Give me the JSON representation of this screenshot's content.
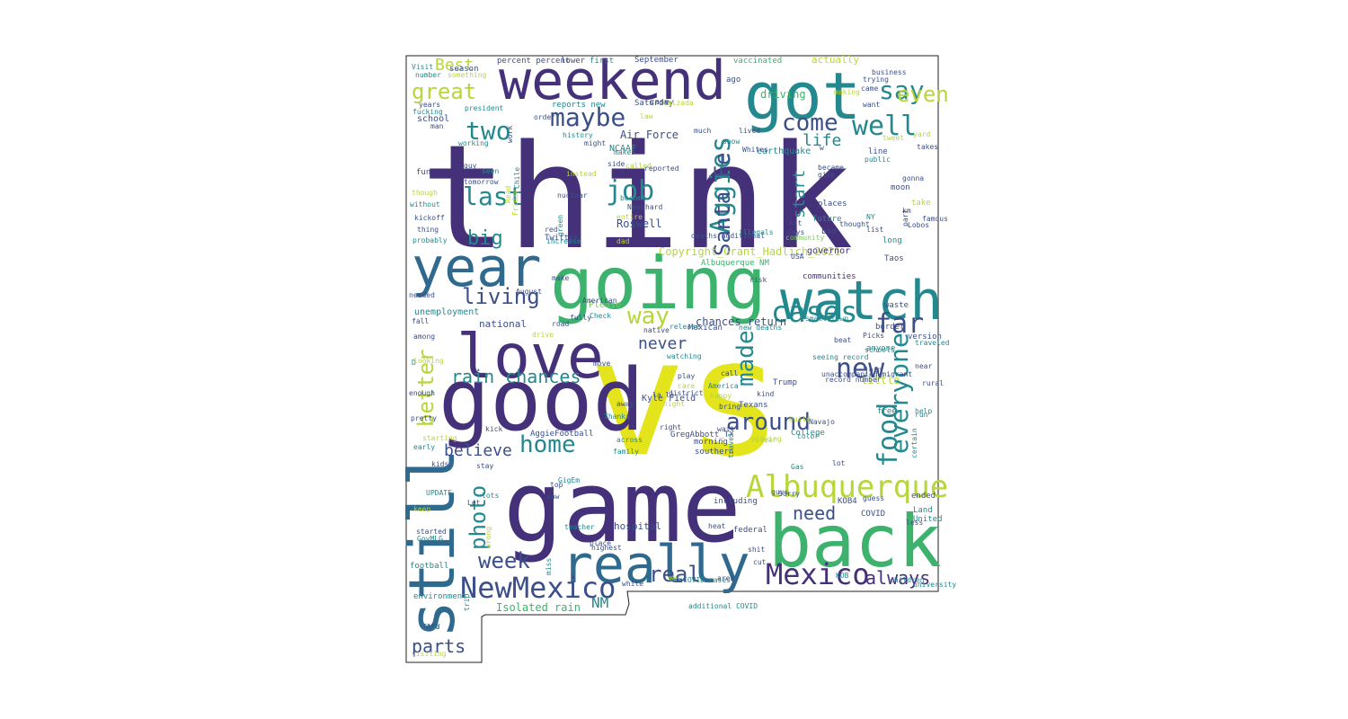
{
  "wordcloud": {
    "colors": {
      "dark_purple": "#45307a",
      "indigo": "#3b4f8a",
      "blue": "#2f6a8e",
      "teal": "#23898e",
      "green": "#3cb26d",
      "light_green": "#7dc95c",
      "lime": "#b7d63b",
      "yellow": "#e3e41b"
    },
    "words": [
      {
        "text": "think",
        "color": "dark_purple"
      },
      {
        "text": "vs",
        "color": "yellow"
      },
      {
        "text": "game",
        "color": "dark_purple"
      },
      {
        "text": "good",
        "color": "dark_purple"
      },
      {
        "text": "going",
        "color": "green"
      },
      {
        "text": "back",
        "color": "green"
      },
      {
        "text": "weekend",
        "color": "dark_purple"
      },
      {
        "text": "got",
        "color": "teal"
      },
      {
        "text": "watch",
        "color": "teal"
      },
      {
        "text": "love",
        "color": "dark_purple"
      },
      {
        "text": "really",
        "color": "blue"
      },
      {
        "text": "year",
        "color": "blue"
      },
      {
        "text": "still",
        "color": "blue"
      },
      {
        "text": "Albuquerque",
        "color": "lime"
      },
      {
        "text": "NewMexico",
        "color": "indigo"
      },
      {
        "text": "Mexico",
        "color": "dark_purple"
      },
      {
        "text": "cases",
        "color": "teal"
      },
      {
        "text": "say",
        "color": "teal"
      },
      {
        "text": "even",
        "color": "lime"
      },
      {
        "text": "great",
        "color": "lime"
      },
      {
        "text": "two",
        "color": "teal"
      },
      {
        "text": "maybe",
        "color": "indigo"
      },
      {
        "text": "come",
        "color": "indigo"
      },
      {
        "text": "well",
        "color": "teal"
      },
      {
        "text": "last",
        "color": "teal"
      },
      {
        "text": "big",
        "color": "teal"
      },
      {
        "text": "job",
        "color": "teal"
      },
      {
        "text": "Aggies",
        "color": "teal"
      },
      {
        "text": "Santa Fe",
        "color": "indigo"
      },
      {
        "text": "life",
        "color": "teal"
      },
      {
        "text": "start",
        "color": "teal"
      },
      {
        "text": "living",
        "color": "indigo"
      },
      {
        "text": "way",
        "color": "lime"
      },
      {
        "text": "far",
        "color": "indigo"
      },
      {
        "text": "new",
        "color": "indigo"
      },
      {
        "text": "everyone",
        "color": "teal"
      },
      {
        "text": "food",
        "color": "teal"
      },
      {
        "text": "made",
        "color": "teal"
      },
      {
        "text": "around",
        "color": "indigo"
      },
      {
        "text": "better",
        "color": "lime"
      },
      {
        "text": "rain chances",
        "color": "teal"
      },
      {
        "text": "home",
        "color": "teal"
      },
      {
        "text": "believe",
        "color": "indigo"
      },
      {
        "text": "photo",
        "color": "teal"
      },
      {
        "text": "week",
        "color": "indigo"
      },
      {
        "text": "parts",
        "color": "indigo"
      },
      {
        "text": "real",
        "color": "indigo"
      },
      {
        "text": "need",
        "color": "indigo"
      },
      {
        "text": "always",
        "color": "dark_purple"
      },
      {
        "text": "never",
        "color": "indigo"
      },
      {
        "text": "Best",
        "color": "lime"
      },
      {
        "text": "NM",
        "color": "teal"
      },
      {
        "text": "Copyright_Grant_Hadlich_2021",
        "color": "lime"
      },
      {
        "text": "Roswell",
        "color": "indigo"
      },
      {
        "text": "Air Force",
        "color": "indigo"
      },
      {
        "text": "NCAAF",
        "color": "teal"
      },
      {
        "text": "Isolated rain",
        "color": "green"
      },
      {
        "text": "chances return",
        "color": "indigo"
      },
      {
        "text": "Kyle Field",
        "color": "indigo"
      },
      {
        "text": "GregAbbott_TX",
        "color": "indigo"
      },
      {
        "text": "AggieFootball",
        "color": "indigo"
      },
      {
        "text": "unemployment",
        "color": "teal"
      },
      {
        "text": "driving",
        "color": "green"
      },
      {
        "text": "actually",
        "color": "lime"
      },
      {
        "text": "national",
        "color": "indigo"
      },
      {
        "text": "school",
        "color": "indigo"
      },
      {
        "text": "earthquake",
        "color": "teal"
      },
      {
        "text": "hospital",
        "color": "indigo"
      },
      {
        "text": "governor",
        "color": "dark_purple"
      },
      {
        "text": "communities",
        "color": "dark_purple"
      },
      {
        "text": "percent percent",
        "color": "indigo"
      },
      {
        "text": "September",
        "color": "indigo"
      },
      {
        "text": "vaccinated",
        "color": "green"
      },
      {
        "text": "Saturday",
        "color": "indigo"
      },
      {
        "text": "Albuquerque NM",
        "color": "green"
      },
      {
        "text": "Trump",
        "color": "indigo"
      },
      {
        "text": "Texans",
        "color": "indigo"
      },
      {
        "text": "Twitter",
        "color": "indigo"
      },
      {
        "text": "KOB4",
        "color": "indigo"
      },
      {
        "text": "COVID",
        "color": "indigo"
      },
      {
        "text": "federal",
        "color": "indigo"
      },
      {
        "text": "little",
        "color": "lime"
      },
      {
        "text": "including",
        "color": "indigo"
      },
      {
        "text": "GigEm",
        "color": "teal"
      },
      {
        "text": "UPDATE",
        "color": "teal"
      },
      {
        "text": "College",
        "color": "teal"
      },
      {
        "text": "morning",
        "color": "indigo"
      },
      {
        "text": "southern",
        "color": "indigo"
      },
      {
        "text": "football",
        "color": "teal"
      },
      {
        "text": "environment",
        "color": "teal"
      },
      {
        "text": "Mexican",
        "color": "indigo"
      },
      {
        "text": "Please",
        "color": "light_green"
      },
      {
        "text": "Taos",
        "color": "indigo"
      },
      {
        "text": "Land",
        "color": "teal"
      },
      {
        "text": "United",
        "color": "teal"
      },
      {
        "text": "ended",
        "color": "indigo"
      },
      {
        "text": "version",
        "color": "indigo"
      },
      {
        "text": "free",
        "color": "teal"
      },
      {
        "text": "anyone",
        "color": "teal"
      },
      {
        "text": "border",
        "color": "indigo"
      },
      {
        "text": "waste",
        "color": "indigo"
      },
      {
        "text": "long",
        "color": "teal"
      },
      {
        "text": "bad",
        "color": "indigo"
      },
      {
        "text": "places",
        "color": "indigo"
      },
      {
        "text": "future",
        "color": "teal"
      },
      {
        "text": "moon",
        "color": "indigo"
      },
      {
        "text": "take",
        "color": "lime"
      },
      {
        "text": "line",
        "color": "indigo"
      },
      {
        "text": "public",
        "color": "teal"
      },
      {
        "text": "became",
        "color": "indigo"
      },
      {
        "text": "give",
        "color": "indigo"
      },
      {
        "text": "tweet",
        "color": "lime"
      },
      {
        "text": "yard",
        "color": "lime"
      },
      {
        "text": "takes",
        "color": "indigo"
      },
      {
        "text": "show",
        "color": "teal"
      },
      {
        "text": "Whites",
        "color": "indigo"
      },
      {
        "text": "lived",
        "color": "indigo"
      },
      {
        "text": "much",
        "color": "indigo"
      },
      {
        "text": "ago",
        "color": "indigo"
      },
      {
        "text": "case",
        "color": "indigo"
      },
      {
        "text": "reports new",
        "color": "teal"
      },
      {
        "text": "history",
        "color": "teal"
      },
      {
        "text": "might",
        "color": "indigo"
      },
      {
        "text": "makes",
        "color": "teal"
      },
      {
        "text": "side",
        "color": "indigo"
      },
      {
        "text": "called",
        "color": "lime"
      },
      {
        "text": "reported",
        "color": "indigo"
      },
      {
        "text": "first",
        "color": "teal"
      },
      {
        "text": "lower",
        "color": "indigo"
      },
      {
        "text": "season",
        "color": "indigo"
      },
      {
        "text": "president",
        "color": "teal"
      },
      {
        "text": "years",
        "color": "indigo"
      },
      {
        "text": "man",
        "color": "indigo"
      },
      {
        "text": "fucking",
        "color": "teal"
      },
      {
        "text": "working",
        "color": "teal"
      },
      {
        "text": "fun",
        "color": "indigo"
      },
      {
        "text": "guy",
        "color": "indigo"
      },
      {
        "text": "seen",
        "color": "teal"
      },
      {
        "text": "tomorrow",
        "color": "indigo"
      },
      {
        "text": "though",
        "color": "lime"
      },
      {
        "text": "without",
        "color": "teal"
      },
      {
        "text": "kickoff",
        "color": "indigo"
      },
      {
        "text": "thing",
        "color": "indigo"
      },
      {
        "text": "probably",
        "color": "teal"
      },
      {
        "text": "needed",
        "color": "indigo"
      },
      {
        "text": "fall",
        "color": "indigo"
      },
      {
        "text": "among",
        "color": "indigo"
      },
      {
        "text": "enough",
        "color": "indigo"
      },
      {
        "text": "pretty",
        "color": "indigo"
      },
      {
        "text": "early",
        "color": "teal"
      },
      {
        "text": "kids",
        "color": "indigo"
      },
      {
        "text": "stay",
        "color": "indigo"
      },
      {
        "text": "lots",
        "color": "teal"
      },
      {
        "text": "Let",
        "color": "indigo"
      },
      {
        "text": "keep",
        "color": "lime"
      },
      {
        "text": "started",
        "color": "indigo"
      },
      {
        "text": "GovMLG",
        "color": "teal"
      },
      {
        "text": "trip",
        "color": "teal"
      },
      {
        "text": "visiting",
        "color": "lime"
      },
      {
        "text": "saw",
        "color": "indigo"
      },
      {
        "text": "top",
        "color": "indigo"
      },
      {
        "text": "teacher",
        "color": "teal"
      },
      {
        "text": "miss",
        "color": "teal"
      },
      {
        "text": "place",
        "color": "indigo"
      },
      {
        "text": "highest",
        "color": "indigo"
      },
      {
        "text": "white",
        "color": "indigo"
      },
      {
        "text": "met",
        "color": "lime"
      },
      {
        "text": "area",
        "color": "indigo"
      },
      {
        "text": "cut",
        "color": "indigo"
      },
      {
        "text": "shit",
        "color": "indigo"
      },
      {
        "text": "heat",
        "color": "indigo"
      },
      {
        "text": "less",
        "color": "indigo"
      },
      {
        "text": "guess",
        "color": "indigo"
      },
      {
        "text": "guys",
        "color": "indigo"
      },
      {
        "text": "Sorry",
        "color": "indigo"
      },
      {
        "text": "lot",
        "color": "indigo"
      },
      {
        "text": "certain",
        "color": "teal"
      },
      {
        "text": "wait",
        "color": "indigo"
      },
      {
        "text": "travel",
        "color": "teal"
      },
      {
        "text": "kick",
        "color": "indigo"
      },
      {
        "text": "family",
        "color": "teal"
      },
      {
        "text": "across",
        "color": "teal"
      },
      {
        "text": "right",
        "color": "indigo"
      },
      {
        "text": "Thanks",
        "color": "teal"
      },
      {
        "text": "away",
        "color": "indigo"
      },
      {
        "text": "care",
        "color": "lime"
      },
      {
        "text": "la la",
        "color": "indigo"
      },
      {
        "text": "district",
        "color": "indigo"
      },
      {
        "text": "call",
        "color": "indigo"
      },
      {
        "text": "America",
        "color": "teal"
      },
      {
        "text": "happy",
        "color": "lime"
      },
      {
        "text": "kind",
        "color": "indigo"
      },
      {
        "text": "watching",
        "color": "teal"
      },
      {
        "text": "move",
        "color": "indigo"
      },
      {
        "text": "release",
        "color": "teal"
      },
      {
        "text": "native",
        "color": "indigo"
      },
      {
        "text": "new deaths",
        "color": "teal"
      },
      {
        "text": "small town",
        "color": "teal"
      },
      {
        "text": "beat",
        "color": "indigo"
      },
      {
        "text": "risk",
        "color": "indigo"
      },
      {
        "text": "USA",
        "color": "indigo"
      },
      {
        "text": "days",
        "color": "indigo"
      },
      {
        "text": "hit",
        "color": "indigo"
      },
      {
        "text": "drive",
        "color": "lime"
      },
      {
        "text": "fully",
        "color": "indigo"
      },
      {
        "text": "Check",
        "color": "teal"
      },
      {
        "text": "road",
        "color": "indigo"
      },
      {
        "text": "make",
        "color": "indigo"
      },
      {
        "text": "American",
        "color": "indigo"
      },
      {
        "text": "August",
        "color": "indigo"
      },
      {
        "text": "increase",
        "color": "teal"
      },
      {
        "text": "dad",
        "color": "lime"
      },
      {
        "text": "red",
        "color": "indigo"
      },
      {
        "text": "green",
        "color": "teal"
      },
      {
        "text": "News",
        "color": "indigo"
      },
      {
        "text": "hard",
        "color": "indigo"
      },
      {
        "text": "become",
        "color": "teal"
      },
      {
        "text": "entire",
        "color": "lime"
      },
      {
        "text": "nuclear",
        "color": "indigo"
      },
      {
        "text": "instead",
        "color": "lime"
      },
      {
        "text": "Chile",
        "color": "teal"
      },
      {
        "text": "Friday",
        "color": "lime"
      },
      {
        "text": "work",
        "color": "indigo"
      },
      {
        "text": "order",
        "color": "indigo"
      },
      {
        "text": "want",
        "color": "indigo"
      },
      {
        "text": "came",
        "color": "indigo"
      },
      {
        "text": "trying",
        "color": "indigo"
      },
      {
        "text": "business",
        "color": "indigo"
      },
      {
        "text": "making",
        "color": "lime"
      },
      {
        "text": "Visit",
        "color": "teal"
      },
      {
        "text": "number",
        "color": "teal"
      },
      {
        "text": "something",
        "color": "lime"
      },
      {
        "text": "law",
        "color": "lime"
      },
      {
        "text": "Calzada",
        "color": "lime"
      },
      {
        "text": "w",
        "color": "indigo"
      },
      {
        "text": "D",
        "color": "teal"
      },
      {
        "text": "run",
        "color": "teal"
      },
      {
        "text": "help",
        "color": "teal"
      },
      {
        "text": "Picks",
        "color": "indigo"
      },
      {
        "text": "university",
        "color": "teal"
      },
      {
        "text": "children",
        "color": "teal"
      },
      {
        "text": "Gas",
        "color": "teal"
      },
      {
        "text": "KOB",
        "color": "teal"
      },
      {
        "text": "COVID cases",
        "color": "teal"
      },
      {
        "text": "Read",
        "color": "lime"
      },
      {
        "text": "wrong",
        "color": "lime"
      },
      {
        "text": "deaths additional",
        "color": "indigo"
      },
      {
        "text": "additional COVID",
        "color": "teal"
      },
      {
        "text": "seeing record",
        "color": "teal"
      },
      {
        "text": "record number",
        "color": "indigo"
      },
      {
        "text": "unaccompanied migrant",
        "color": "indigo"
      },
      {
        "text": "join",
        "color": "indigo"
      },
      {
        "text": "thought",
        "color": "indigo"
      },
      {
        "text": "km",
        "color": "indigo"
      },
      {
        "text": "famous",
        "color": "indigo"
      },
      {
        "text": "playing",
        "color": "lime"
      },
      {
        "text": "build",
        "color": "lime"
      },
      {
        "text": "color",
        "color": "teal"
      },
      {
        "text": "bring",
        "color": "indigo"
      },
      {
        "text": "starting",
        "color": "lime"
      },
      {
        "text": "looking",
        "color": "lime"
      },
      {
        "text": "list",
        "color": "indigo"
      },
      {
        "text": "NY",
        "color": "teal"
      },
      {
        "text": "schools",
        "color": "teal"
      },
      {
        "text": "rural",
        "color": "indigo"
      },
      {
        "text": "near",
        "color": "indigo"
      },
      {
        "text": "traveled",
        "color": "teal"
      },
      {
        "text": "play",
        "color": "indigo"
      },
      {
        "text": "night",
        "color": "lime"
      },
      {
        "text": "illegals",
        "color": "teal"
      },
      {
        "text": "community",
        "color": "light_green"
      },
      {
        "text": "Lobos",
        "color": "indigo"
      },
      {
        "text": "gonna",
        "color": "indigo"
      },
      {
        "text": "part",
        "color": "indigo"
      },
      {
        "text": "clear",
        "color": "lime"
      },
      {
        "text": "Navajo",
        "color": "indigo"
      },
      {
        "text": "code",
        "color": "indigo"
      },
      {
        "text": "TAMU",
        "color": "indigo"
      },
      {
        "text": "blue",
        "color": "teal"
      }
    ]
  }
}
